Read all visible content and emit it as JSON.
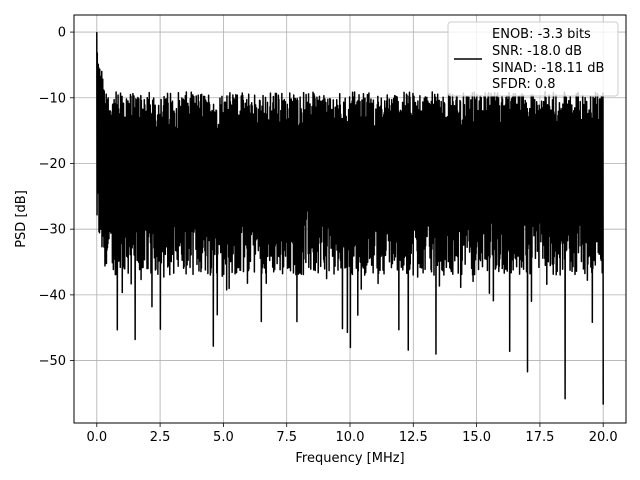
{
  "chart_data": {
    "type": "line",
    "title": "",
    "xlabel": "Frequency [MHz]",
    "ylabel": "PSD [dB]",
    "xlim": [
      -0.9,
      20.9
    ],
    "ylim": [
      -59.5,
      2.6
    ],
    "xticks": [
      0.0,
      2.5,
      5.0,
      7.5,
      10.0,
      12.5,
      15.0,
      17.5,
      20.0
    ],
    "xtick_labels": [
      "0.0",
      "2.5",
      "5.0",
      "7.5",
      "10.0",
      "12.5",
      "15.0",
      "17.5",
      "20.0"
    ],
    "yticks": [
      0,
      -10,
      -20,
      -30,
      -40,
      -50
    ],
    "ytick_labels": [
      "0",
      "−10",
      "−20",
      "−30",
      "−40",
      "−50"
    ],
    "grid": true,
    "legend": {
      "placement": "top-right",
      "entries": [
        "ENOB: -3.3 bits",
        "SNR: -18.0 dB",
        "SINAD: -18.11 dB",
        "SFDR: 0.8"
      ]
    },
    "series": [
      {
        "color": "#000000",
        "x_start": 0.0,
        "x_end": 20.0,
        "num_points": 2048,
        "mean_level_db": -22,
        "upper_envelope_db": -13,
        "lower_envelope_db": -32,
        "peaks": [
          [
            0.0,
            0.0
          ],
          [
            0.1,
            -7.0
          ],
          [
            0.2,
            -6.0
          ]
        ],
        "notable_dips": [
          [
            0.8,
            -45.3
          ],
          [
            1.5,
            -46.8
          ],
          [
            4.6,
            -47.8
          ],
          [
            9.9,
            -45.7
          ],
          [
            10.0,
            -48.0
          ],
          [
            12.3,
            -48.4
          ],
          [
            13.4,
            -49.0
          ],
          [
            16.3,
            -48.6
          ],
          [
            17.0,
            -51.7
          ],
          [
            18.5,
            -55.8
          ],
          [
            20.0,
            -56.7
          ]
        ]
      }
    ]
  },
  "colors": {
    "line": "#000000",
    "grid": "#b0b0b0",
    "frame": "#000000",
    "background": "#ffffff"
  }
}
